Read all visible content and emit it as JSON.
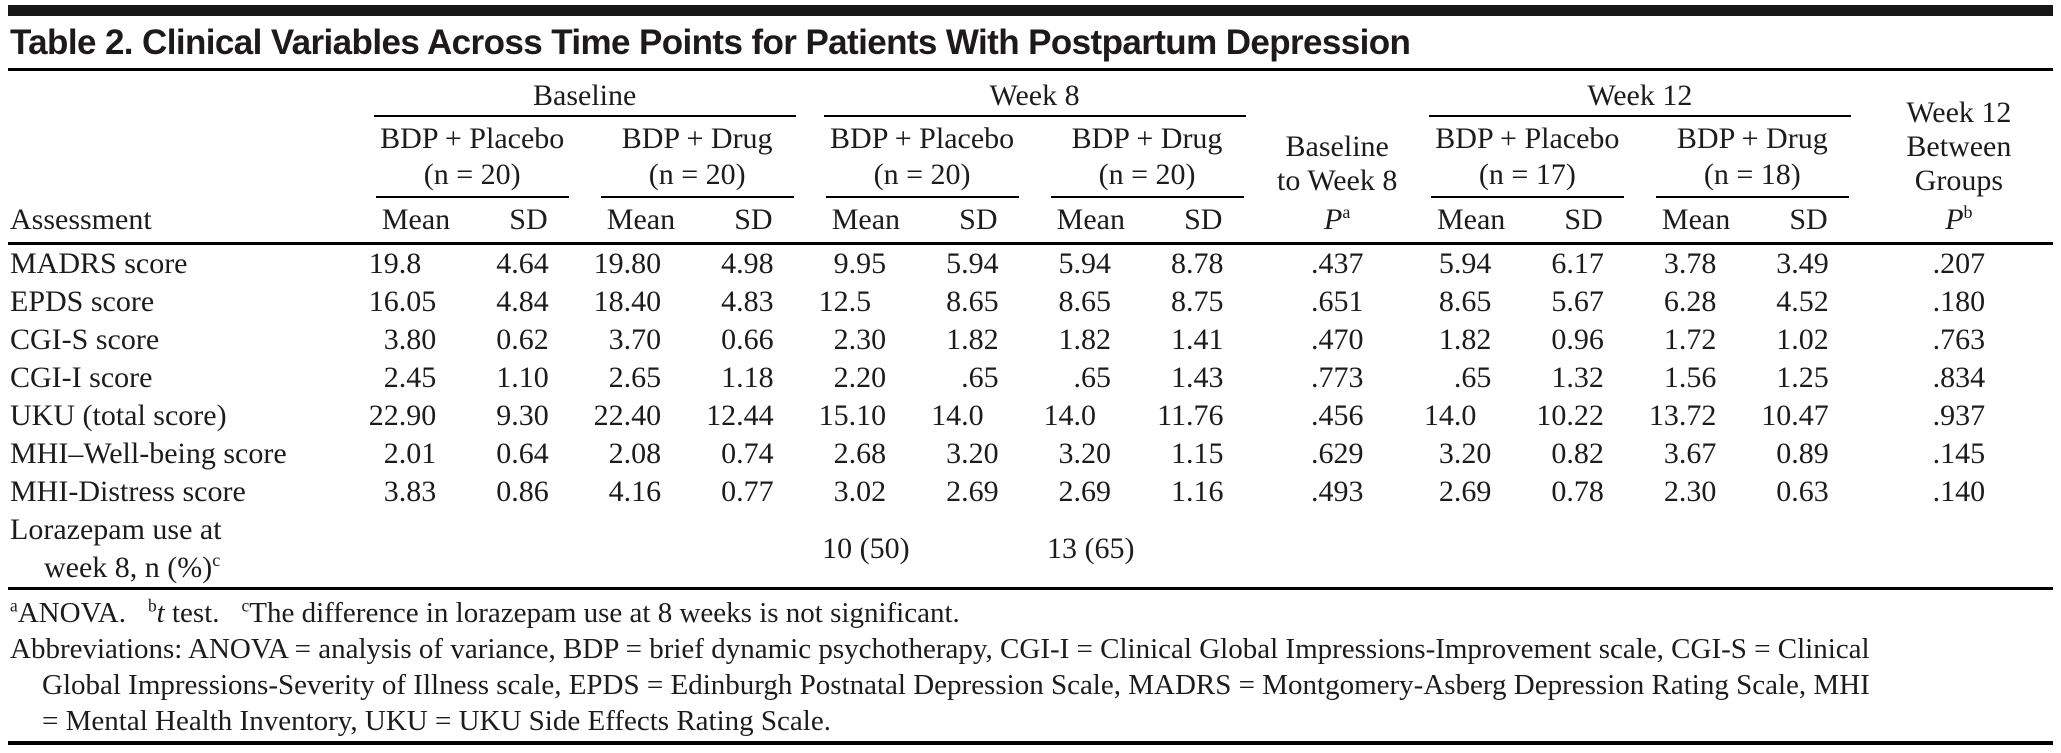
{
  "title": "Table 2. Clinical Variables Across Time Points for Patients With Postpartum Depression",
  "colors": {
    "background": "#ffffff",
    "text": "#1c1c1c",
    "rule": "#000000"
  },
  "header": {
    "assessment": "Assessment",
    "mean": "Mean",
    "sd": "SD",
    "groups": [
      {
        "label": "Baseline",
        "subgroups": [
          {
            "name": "BDP + Placebo",
            "n": "(n = 20)"
          },
          {
            "name": "BDP + Drug",
            "n": "(n = 20)"
          }
        ]
      },
      {
        "label": "Week 8",
        "subgroups": [
          {
            "name": "BDP + Placebo",
            "n": "(n = 20)"
          },
          {
            "name": "BDP + Drug",
            "n": "(n = 20)"
          }
        ]
      },
      {
        "label": "Week 12",
        "subgroups": [
          {
            "name": "BDP + Placebo",
            "n": "(n = 17)"
          },
          {
            "name": "BDP + Drug",
            "n": "(n = 18)"
          }
        ]
      }
    ],
    "p_baseline_week8": {
      "lines": [
        "Baseline",
        "to Week 8"
      ],
      "stat": "P",
      "marker": "a"
    },
    "p_week12": {
      "lines": [
        "Week 12",
        "Between",
        "Groups"
      ],
      "stat": "P",
      "marker": "b"
    }
  },
  "rows": [
    {
      "label": "MADRS score",
      "values": [
        "19.8",
        "4.64",
        "19.80",
        "4.98",
        "9.95",
        "5.94",
        "5.94",
        "8.78",
        ".437",
        "5.94",
        "6.17",
        "3.78",
        "3.49",
        ".207"
      ]
    },
    {
      "label": "EPDS score",
      "values": [
        "16.05",
        "4.84",
        "18.40",
        "4.83",
        "12.5",
        "8.65",
        "8.65",
        "8.75",
        ".651",
        "8.65",
        "5.67",
        "6.28",
        "4.52",
        ".180"
      ]
    },
    {
      "label": "CGI-S score",
      "values": [
        "3.80",
        "0.62",
        "3.70",
        "0.66",
        "2.30",
        "1.82",
        "1.82",
        "1.41",
        ".470",
        "1.82",
        "0.96",
        "1.72",
        "1.02",
        ".763"
      ]
    },
    {
      "label": "CGI-I score",
      "values": [
        "2.45",
        "1.10",
        "2.65",
        "1.18",
        "2.20",
        ".65",
        ".65",
        "1.43",
        ".773",
        ".65",
        "1.32",
        "1.56",
        "1.25",
        ".834"
      ]
    },
    {
      "label": "UKU (total score)",
      "values": [
        "22.90",
        "9.30",
        "22.40",
        "12.44",
        "15.10",
        "14.0",
        "14.0",
        "11.76",
        ".456",
        "14.0",
        "10.22",
        "13.72",
        "10.47",
        ".937"
      ]
    },
    {
      "label": "MHI–Well-being score",
      "values": [
        "2.01",
        "0.64",
        "2.08",
        "0.74",
        "2.68",
        "3.20",
        "3.20",
        "1.15",
        ".629",
        "3.20",
        "0.82",
        "3.67",
        "0.89",
        ".145"
      ]
    },
    {
      "label": "MHI-Distress score",
      "values": [
        "3.83",
        "0.86",
        "4.16",
        "0.77",
        "3.02",
        "2.69",
        "2.69",
        "1.16",
        ".493",
        "2.69",
        "0.78",
        "2.30",
        "0.63",
        ".140"
      ]
    },
    {
      "label": "Lorazepam use at",
      "label2": "week 8, n (%)",
      "marker": "c",
      "values": [
        "",
        "",
        "",
        "",
        "10 (50)",
        "",
        "13 (65)",
        "",
        "",
        "",
        "",
        "",
        "",
        ""
      ]
    }
  ],
  "footnotes": {
    "notes": [
      {
        "marker": "a",
        "italic": "",
        "text": "ANOVA."
      },
      {
        "marker": "b",
        "italic": "t",
        "text": " test."
      },
      {
        "marker": "c",
        "italic": "",
        "text": "The difference in lorazepam use at 8 weeks is not significant."
      }
    ],
    "abbreviations": "Abbreviations: ANOVA = analysis of variance, BDP = brief dynamic psychotherapy, CGI-I = Clinical Global Impressions-Improvement scale, CGI-S = Clinical Global Impressions-Severity of Illness scale, EPDS = Edinburgh Postnatal Depression Scale, MADRS = Montgomery-Asberg Depression Rating Scale, MHI = Mental Health Inventory, UKU = UKU Side Effects Rating Scale."
  }
}
